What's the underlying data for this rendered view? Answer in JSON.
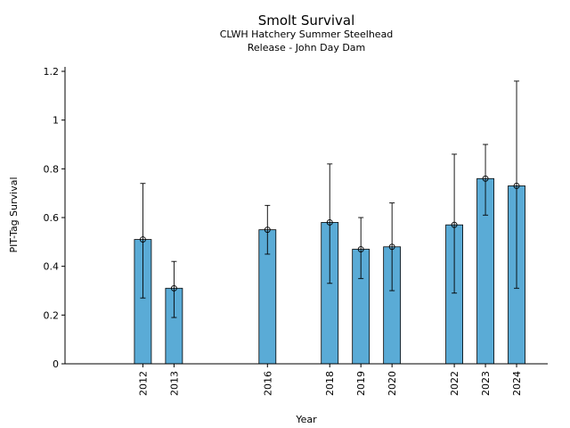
{
  "chart_data": {
    "type": "bar",
    "title": "Smolt Survival",
    "subtitle_lines": [
      "CLWH Hatchery Summer Steelhead",
      "Release - John Day Dam"
    ],
    "xlabel": "Year",
    "ylabel": "PIT-Tag Survival",
    "x": [
      2012,
      2013,
      2016,
      2018,
      2019,
      2020,
      2022,
      2023,
      2024
    ],
    "values": [
      0.51,
      0.31,
      0.55,
      0.58,
      0.47,
      0.48,
      0.57,
      0.76,
      0.73
    ],
    "error_low": [
      0.27,
      0.19,
      0.45,
      0.33,
      0.35,
      0.3,
      0.29,
      0.61,
      0.31
    ],
    "error_high": [
      0.74,
      0.42,
      0.65,
      0.82,
      0.6,
      0.66,
      0.86,
      0.9,
      1.16
    ],
    "xlim": [
      2009.5,
      2025.0
    ],
    "ylim": [
      0,
      1.2
    ],
    "yticks": [
      0,
      0.2,
      0.4,
      0.6,
      0.8,
      1,
      1.2
    ],
    "ytick_labels": [
      "0",
      "0.2",
      "0.4",
      "0.6",
      "0.8",
      "1",
      "1.2"
    ],
    "bar_color": "#5aabd6",
    "edge_color": "#000000",
    "grid": false
  }
}
